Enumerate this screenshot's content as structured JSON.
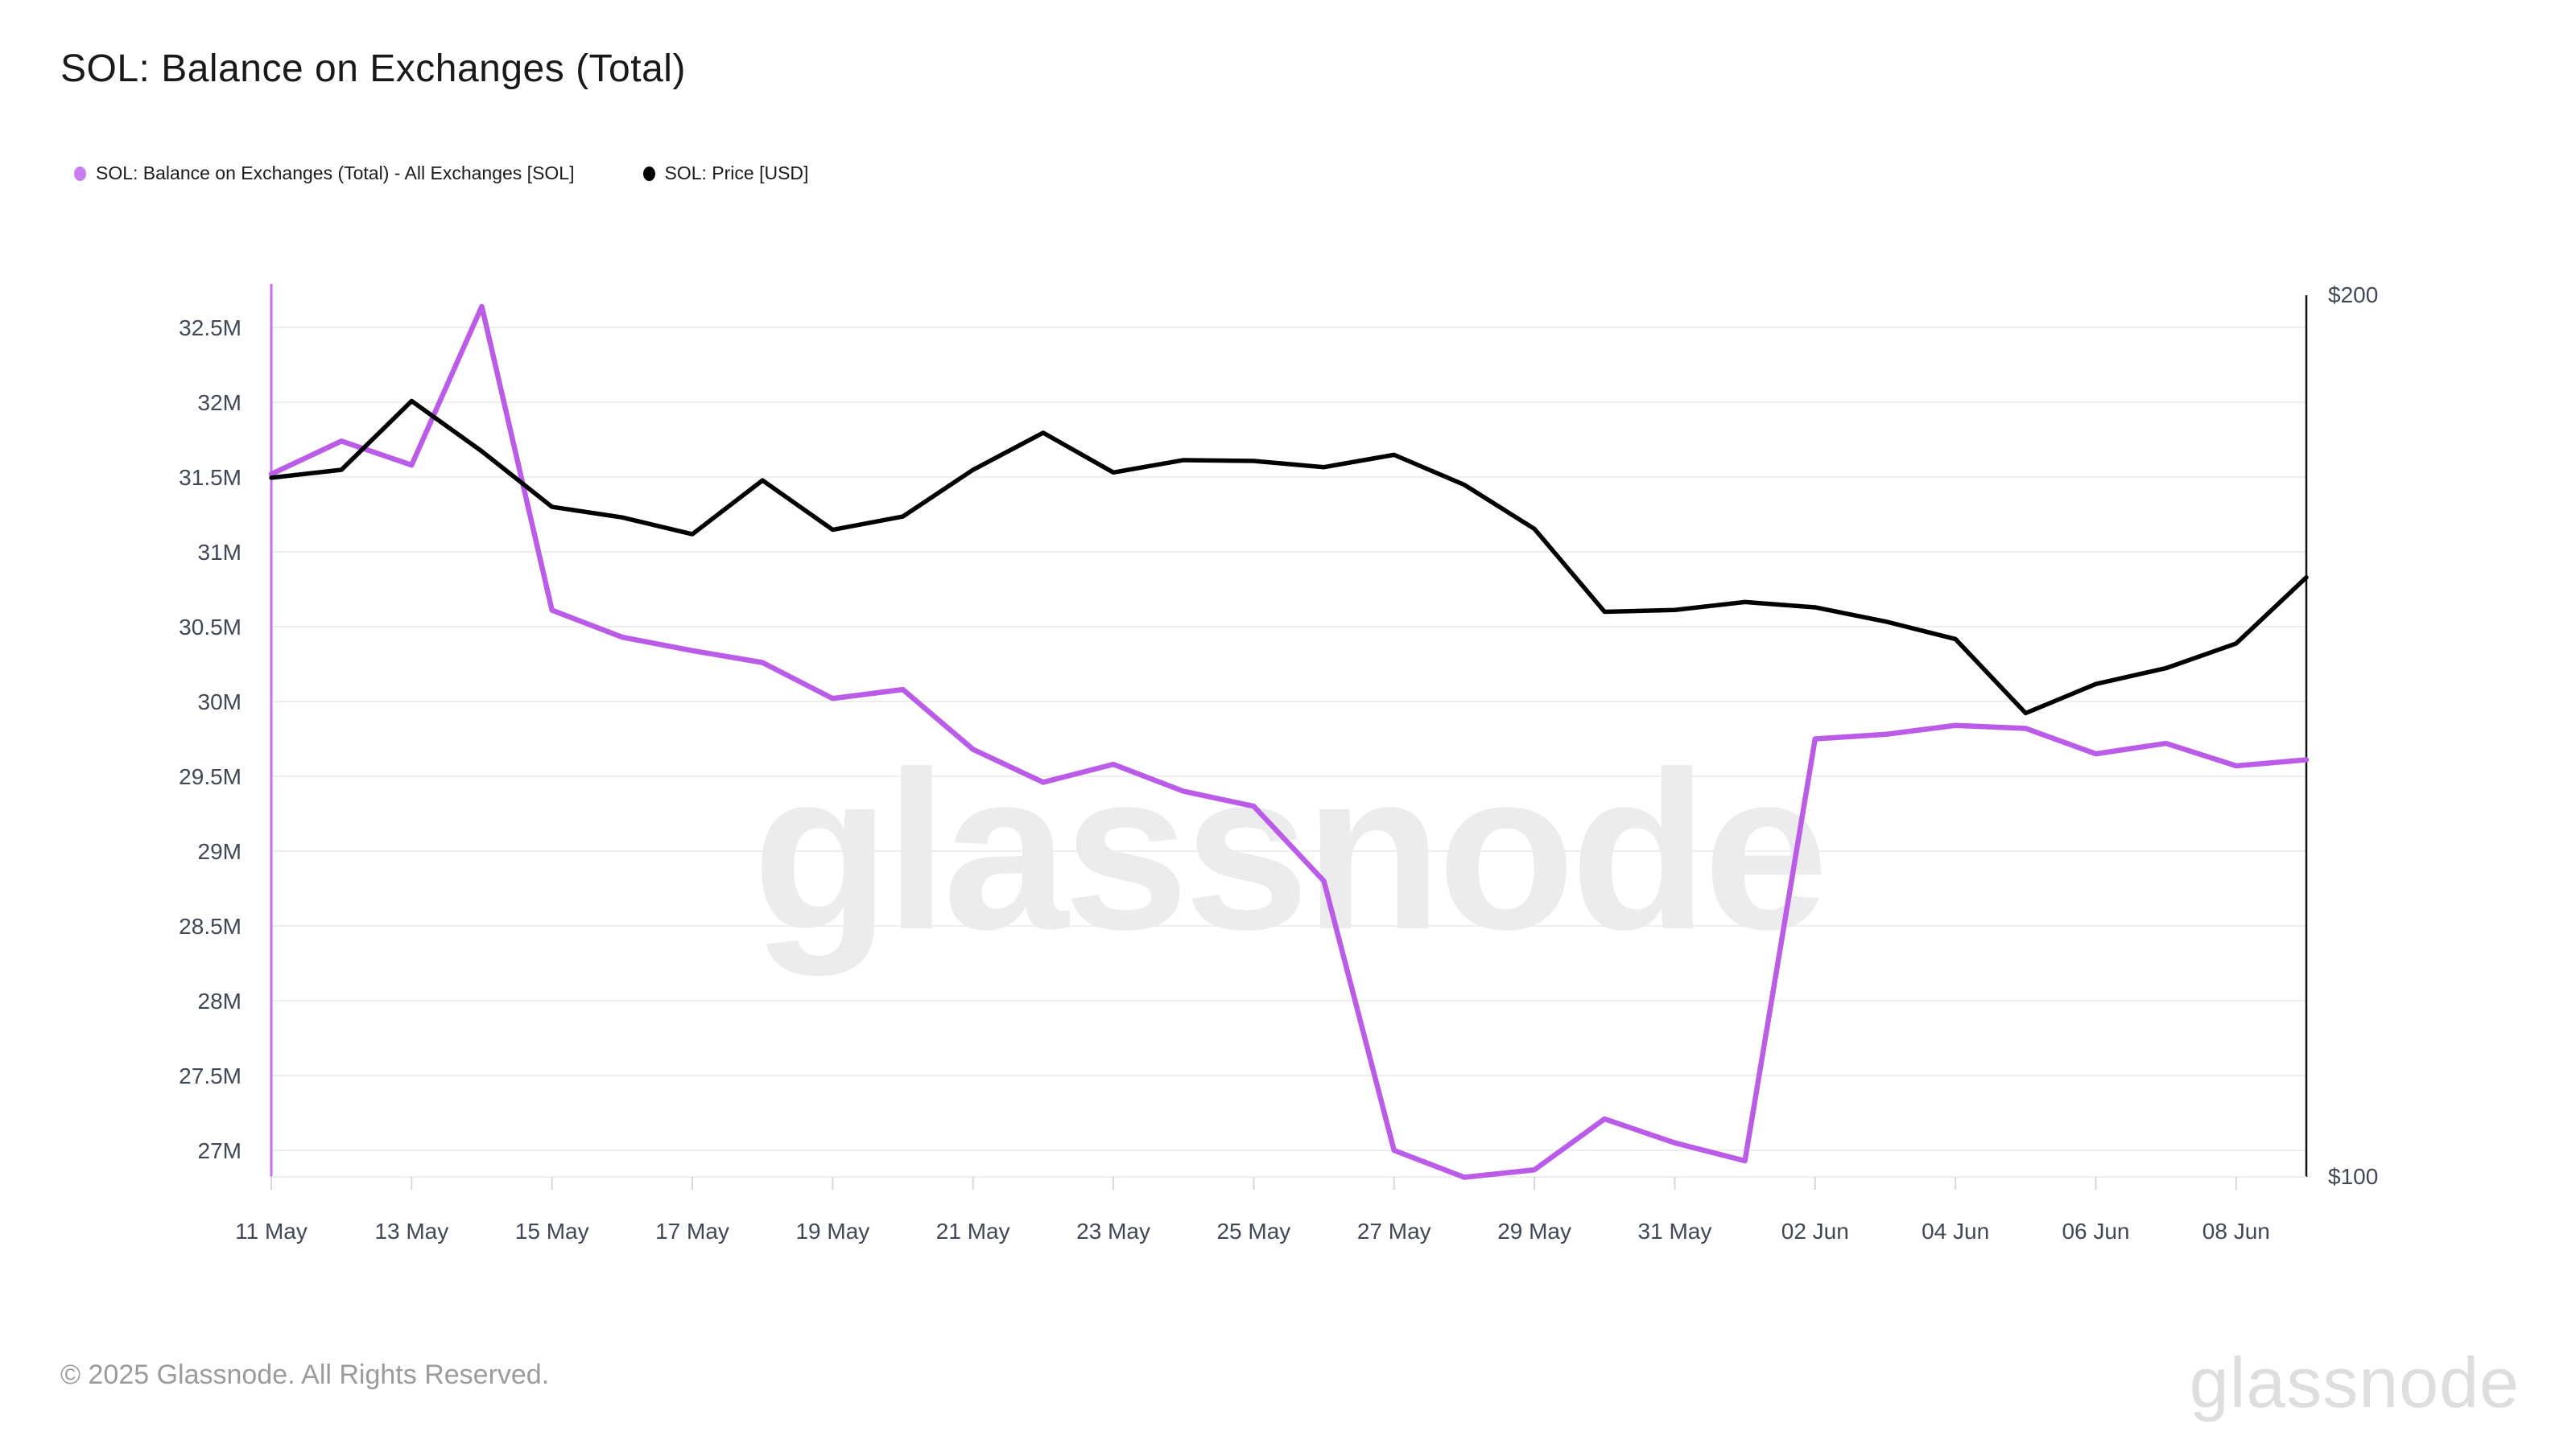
{
  "header": {
    "title": "SOL: Balance on Exchanges (Total)"
  },
  "legend": {
    "items": [
      {
        "label": "SOL: Balance on Exchanges (Total) - All Exchanges [SOL]",
        "color": "#c87ef2"
      },
      {
        "label": "SOL: Price [USD]",
        "color": "#000000"
      }
    ]
  },
  "watermark": {
    "text": "glassnode",
    "color": "#ececee"
  },
  "footer": {
    "copyright": "© 2025 Glassnode. All Rights Reserved.",
    "brand": "glassnode"
  },
  "chart_data": {
    "type": "line",
    "title": "SOL: Balance on Exchanges (Total)",
    "grid": "horizontal-only",
    "legend_position": "top-left",
    "x_dates": [
      "11 May",
      "12 May",
      "13 May",
      "14 May",
      "15 May",
      "16 May",
      "17 May",
      "18 May",
      "19 May",
      "20 May",
      "21 May",
      "22 May",
      "23 May",
      "24 May",
      "25 May",
      "26 May",
      "27 May",
      "28 May",
      "29 May",
      "30 May",
      "31 May",
      "01 Jun",
      "02 Jun",
      "03 Jun",
      "04 Jun",
      "05 Jun",
      "06 Jun",
      "07 Jun",
      "08 Jun",
      "09 Jun"
    ],
    "x_tick_labels": [
      "11 May",
      "13 May",
      "15 May",
      "17 May",
      "19 May",
      "21 May",
      "23 May",
      "25 May",
      "27 May",
      "29 May",
      "31 May",
      "02 Jun",
      "04 Jun",
      "06 Jun",
      "08 Jun"
    ],
    "x_tick_indices": [
      0,
      2,
      4,
      6,
      8,
      10,
      12,
      14,
      16,
      18,
      20,
      22,
      24,
      26,
      28
    ],
    "y_left": {
      "unit": "million SOL",
      "ticks": [
        32.5,
        32,
        31.5,
        31,
        30.5,
        30,
        29.5,
        29,
        28.5,
        28,
        27.5,
        27
      ],
      "tick_labels": [
        "32.5M",
        "32M",
        "31.5M",
        "31M",
        "30.5M",
        "30M",
        "29.5M",
        "29M",
        "28.5M",
        "28M",
        "27.5M",
        "27M"
      ],
      "axis_color": "#c36ff0",
      "label_color": "#414855"
    },
    "y_right": {
      "unit": "USD",
      "ticks": [
        200,
        100
      ],
      "tick_labels": [
        "$200",
        "$100"
      ],
      "range": [
        100,
        200
      ],
      "axis_color": "#111111",
      "label_color": "#414855"
    },
    "series": [
      {
        "name": "SOL: Balance on Exchanges (Total) - All Exchanges [SOL]",
        "axis": "left",
        "color": "#bb5ce8",
        "unit": "million SOL",
        "values": [
          31.52,
          31.74,
          31.58,
          32.64,
          30.61,
          30.43,
          30.34,
          30.26,
          30.02,
          30.08,
          29.68,
          29.46,
          29.58,
          29.4,
          29.3,
          28.8,
          27.0,
          26.82,
          26.87,
          27.21,
          27.05,
          26.93,
          29.75,
          29.78,
          29.84,
          29.82,
          29.65,
          29.72,
          29.57,
          29.61
        ]
      },
      {
        "name": "SOL: Price [USD]",
        "axis": "right",
        "color": "#000000",
        "unit": "USD",
        "values": [
          179.3,
          180.2,
          188.0,
          182.3,
          176.0,
          174.8,
          172.9,
          179.0,
          173.4,
          174.9,
          180.2,
          184.4,
          179.9,
          181.3,
          181.2,
          180.5,
          181.9,
          178.5,
          173.5,
          164.1,
          164.3,
          165.2,
          164.6,
          163.0,
          161.0,
          152.6,
          155.9,
          157.7,
          160.5,
          168.0
        ]
      }
    ]
  }
}
